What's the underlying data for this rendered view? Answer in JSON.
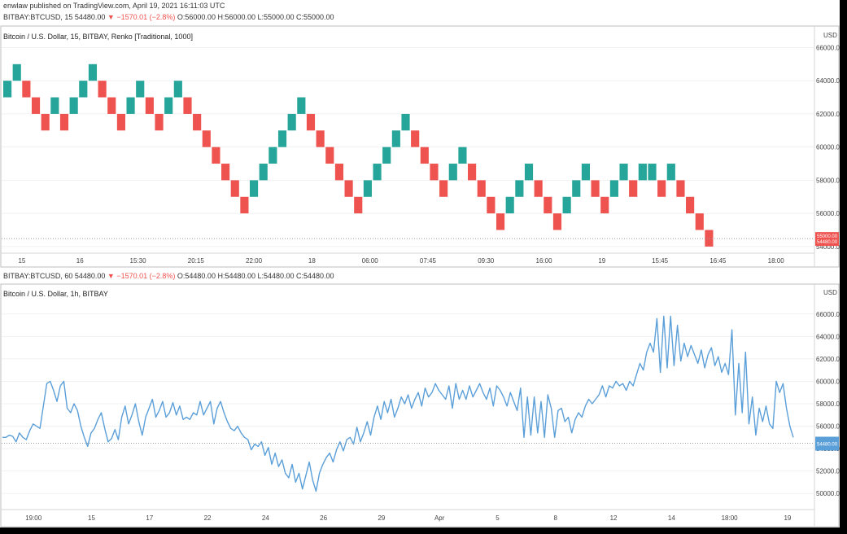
{
  "header": {
    "published": "enwlaw published on TradingView.com, April 19, 2021 16:11:03 UTC",
    "symbol_line_1_prefix": "BITBAY:BTCUSD, 15 54480.00",
    "symbol_line_1_change": "▼ −1570.01 (−2.8%)",
    "symbol_line_1_ohlc": "O:56000.00 H:56000.00 L:55000.00 C:55000.00",
    "symbol_line_2_prefix": "BITBAY:BTCUSD, 60 54480.00",
    "symbol_line_2_change": "▼ −1570.01 (−2.8%)",
    "symbol_line_2_ohlc": "O:54480.00 H:54480.00 L:54480.00 C:54480.00"
  },
  "colors": {
    "up": "#26a69a",
    "down": "#ef5350",
    "line": "#5b9fd9",
    "last_down": "#ef5350",
    "last_line": "#5b9fd9"
  },
  "chart_data": [
    {
      "type": "renko",
      "title": "Bitcoin / U.S. Dollar, 15, BITBAY, Renko [Traditional, 1000]",
      "currency": "USD",
      "box_size": 1000,
      "x_ticks": [
        "15",
        "16",
        "15:30",
        "20:15",
        "22:00",
        "18",
        "06:00",
        "07:45",
        "09:30",
        "16:00",
        "19",
        "15:45",
        "16:45",
        "18:00"
      ],
      "y_ticks": [
        66000,
        64000,
        62000,
        60000,
        58000,
        56000,
        54000
      ],
      "y_tick_labels": [
        "66000.00",
        "64000.00",
        "62000.00",
        "60000.00",
        "58000.00",
        "56000.00",
        "54000.00"
      ],
      "ylim": [
        53700,
        67200
      ],
      "last_price": 54480,
      "last_price_labels": [
        "55000.00",
        "54480.00"
      ],
      "bricks": [
        {
          "top": 64000,
          "dir": "up"
        },
        {
          "top": 65000,
          "dir": "up"
        },
        {
          "top": 64000,
          "dir": "down"
        },
        {
          "top": 63000,
          "dir": "down"
        },
        {
          "top": 62000,
          "dir": "down"
        },
        {
          "top": 63000,
          "dir": "up"
        },
        {
          "top": 62000,
          "dir": "down"
        },
        {
          "top": 63000,
          "dir": "up"
        },
        {
          "top": 64000,
          "dir": "up"
        },
        {
          "top": 65000,
          "dir": "up"
        },
        {
          "top": 64000,
          "dir": "down"
        },
        {
          "top": 63000,
          "dir": "down"
        },
        {
          "top": 62000,
          "dir": "down"
        },
        {
          "top": 63000,
          "dir": "up"
        },
        {
          "top": 64000,
          "dir": "up"
        },
        {
          "top": 63000,
          "dir": "down"
        },
        {
          "top": 62000,
          "dir": "down"
        },
        {
          "top": 63000,
          "dir": "up"
        },
        {
          "top": 64000,
          "dir": "up"
        },
        {
          "top": 63000,
          "dir": "down"
        },
        {
          "top": 62000,
          "dir": "down"
        },
        {
          "top": 61000,
          "dir": "down"
        },
        {
          "top": 60000,
          "dir": "down"
        },
        {
          "top": 59000,
          "dir": "down"
        },
        {
          "top": 58000,
          "dir": "down"
        },
        {
          "top": 57000,
          "dir": "down"
        },
        {
          "top": 58000,
          "dir": "up"
        },
        {
          "top": 59000,
          "dir": "up"
        },
        {
          "top": 60000,
          "dir": "up"
        },
        {
          "top": 61000,
          "dir": "up"
        },
        {
          "top": 62000,
          "dir": "up"
        },
        {
          "top": 63000,
          "dir": "up"
        },
        {
          "top": 62000,
          "dir": "down"
        },
        {
          "top": 61000,
          "dir": "down"
        },
        {
          "top": 60000,
          "dir": "down"
        },
        {
          "top": 59000,
          "dir": "down"
        },
        {
          "top": 58000,
          "dir": "down"
        },
        {
          "top": 57000,
          "dir": "down"
        },
        {
          "top": 58000,
          "dir": "up"
        },
        {
          "top": 59000,
          "dir": "up"
        },
        {
          "top": 60000,
          "dir": "up"
        },
        {
          "top": 61000,
          "dir": "up"
        },
        {
          "top": 62000,
          "dir": "up"
        },
        {
          "top": 61000,
          "dir": "down"
        },
        {
          "top": 60000,
          "dir": "down"
        },
        {
          "top": 59000,
          "dir": "down"
        },
        {
          "top": 58000,
          "dir": "down"
        },
        {
          "top": 59000,
          "dir": "up"
        },
        {
          "top": 60000,
          "dir": "up"
        },
        {
          "top": 59000,
          "dir": "down"
        },
        {
          "top": 58000,
          "dir": "down"
        },
        {
          "top": 57000,
          "dir": "down"
        },
        {
          "top": 56000,
          "dir": "down"
        },
        {
          "top": 57000,
          "dir": "up"
        },
        {
          "top": 58000,
          "dir": "up"
        },
        {
          "top": 59000,
          "dir": "up"
        },
        {
          "top": 58000,
          "dir": "down"
        },
        {
          "top": 57000,
          "dir": "down"
        },
        {
          "top": 56000,
          "dir": "down"
        },
        {
          "top": 57000,
          "dir": "up"
        },
        {
          "top": 58000,
          "dir": "up"
        },
        {
          "top": 59000,
          "dir": "up"
        },
        {
          "top": 58000,
          "dir": "down"
        },
        {
          "top": 57000,
          "dir": "down"
        },
        {
          "top": 58000,
          "dir": "up"
        },
        {
          "top": 59000,
          "dir": "up"
        },
        {
          "top": 58000,
          "dir": "down"
        },
        {
          "top": 59000,
          "dir": "up"
        },
        {
          "top": 59000,
          "dir": "up"
        },
        {
          "top": 58000,
          "dir": "down"
        },
        {
          "top": 59000,
          "dir": "up"
        },
        {
          "top": 58000,
          "dir": "down"
        },
        {
          "top": 57000,
          "dir": "down"
        },
        {
          "top": 56000,
          "dir": "down"
        },
        {
          "top": 55000,
          "dir": "down"
        }
      ]
    },
    {
      "type": "line",
      "title": "Bitcoin / U.S. Dollar, 1h, BITBAY",
      "currency": "USD",
      "x_ticks": [
        "19:00",
        "15",
        "17",
        "22",
        "24",
        "26",
        "29",
        "Apr",
        "5",
        "8",
        "12",
        "14",
        "18:00",
        "19"
      ],
      "y_ticks": [
        66000,
        64000,
        62000,
        60000,
        58000,
        56000,
        54000,
        52000,
        50000
      ],
      "y_tick_labels": [
        "66000.00",
        "64000.00",
        "62000.00",
        "60000.00",
        "58000.00",
        "56000.00",
        "54000.00",
        "52000.00",
        "50000.00"
      ],
      "ylim": [
        49000,
        67000
      ],
      "last_price": 54480,
      "last_price_label": "54480.00",
      "values": [
        55000,
        55000,
        55200,
        55100,
        54600,
        55400,
        55000,
        54800,
        55600,
        56200,
        56000,
        55800,
        57800,
        59800,
        60000,
        59200,
        58200,
        59600,
        60000,
        57600,
        57200,
        58000,
        57400,
        56000,
        55000,
        54200,
        55400,
        55800,
        56600,
        57200,
        55800,
        54600,
        54900,
        55700,
        54800,
        56800,
        57800,
        56200,
        57000,
        58000,
        56400,
        55200,
        56800,
        57600,
        58400,
        56800,
        57400,
        58200,
        56800,
        57200,
        58100,
        57000,
        57800,
        56600,
        56800,
        56600,
        57200,
        57000,
        58200,
        57000,
        57600,
        58200,
        56200,
        57600,
        58200,
        57200,
        56400,
        55800,
        55600,
        56000,
        55400,
        55000,
        54800,
        53900,
        54400,
        54200,
        54600,
        53400,
        54100,
        52600,
        53600,
        52400,
        53000,
        51800,
        51400,
        52600,
        51000,
        51800,
        50400,
        51600,
        52800,
        51200,
        50200,
        51800,
        52600,
        53200,
        53600,
        52800,
        53900,
        54600,
        53800,
        54800,
        55000,
        54400,
        55900,
        54600,
        55400,
        56400,
        55200,
        56800,
        57800,
        56600,
        58200,
        57200,
        58400,
        56800,
        57600,
        58600,
        58000,
        58800,
        57600,
        58400,
        59000,
        57800,
        59400,
        58600,
        59000,
        59800,
        59200,
        58800,
        58400,
        59600,
        57600,
        59800,
        58400,
        59200,
        58400,
        59600,
        58600,
        59200,
        59800,
        59000,
        58400,
        59400,
        57800,
        59600,
        59200,
        58600,
        57800,
        59000,
        58200,
        57400,
        59400,
        55000,
        58600,
        55200,
        58600,
        55400,
        58200,
        55000,
        58800,
        57600,
        55000,
        57400,
        57600,
        56400,
        56800,
        55400,
        56600,
        57200,
        56800,
        57800,
        58400,
        58000,
        58400,
        58800,
        59600,
        58600,
        59600,
        59400,
        60000,
        59600,
        59800,
        59200,
        60000,
        59600,
        60600,
        61600,
        61000,
        62600,
        63400,
        62600,
        65600,
        60800,
        65800,
        61200,
        65800,
        61400,
        65000,
        61800,
        63400,
        62200,
        63200,
        62400,
        61600,
        62800,
        61200,
        62400,
        63000,
        61400,
        62200,
        60800,
        61600,
        60600,
        64600,
        57000,
        61600,
        57200,
        62600,
        56200,
        58600,
        55200,
        57600,
        56400,
        57800,
        56200,
        55800,
        60000,
        59000,
        59800,
        57600,
        56000,
        55000
      ]
    }
  ]
}
